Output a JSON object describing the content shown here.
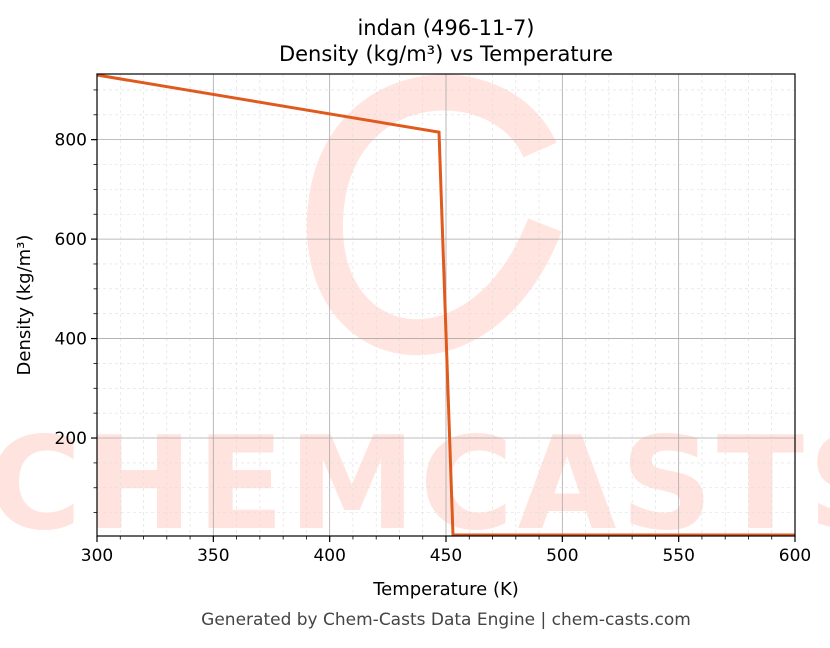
{
  "chart_data": {
    "type": "line",
    "title_line1": "indan (496-11-7)",
    "title_line2": "Density (kg/m³) vs Temperature",
    "xlabel": "Temperature (K)",
    "ylabel": "Density (kg/m³)",
    "xlim": [
      300,
      600
    ],
    "ylim": [
      3,
      932
    ],
    "xticks": [
      300,
      350,
      400,
      450,
      500,
      550,
      600
    ],
    "yticks": [
      200,
      400,
      600,
      800
    ],
    "x_minor_step": 10,
    "y_minor_step": 50,
    "grid": true,
    "series": [
      {
        "color": "#e05a1e",
        "x": [
          300,
          447,
          453,
          600
        ],
        "y": [
          930,
          815,
          5,
          5
        ]
      }
    ],
    "footer": "Generated by Chem-Casts Data Engine | chem-casts.com",
    "watermark": "CHEMCASTS"
  }
}
